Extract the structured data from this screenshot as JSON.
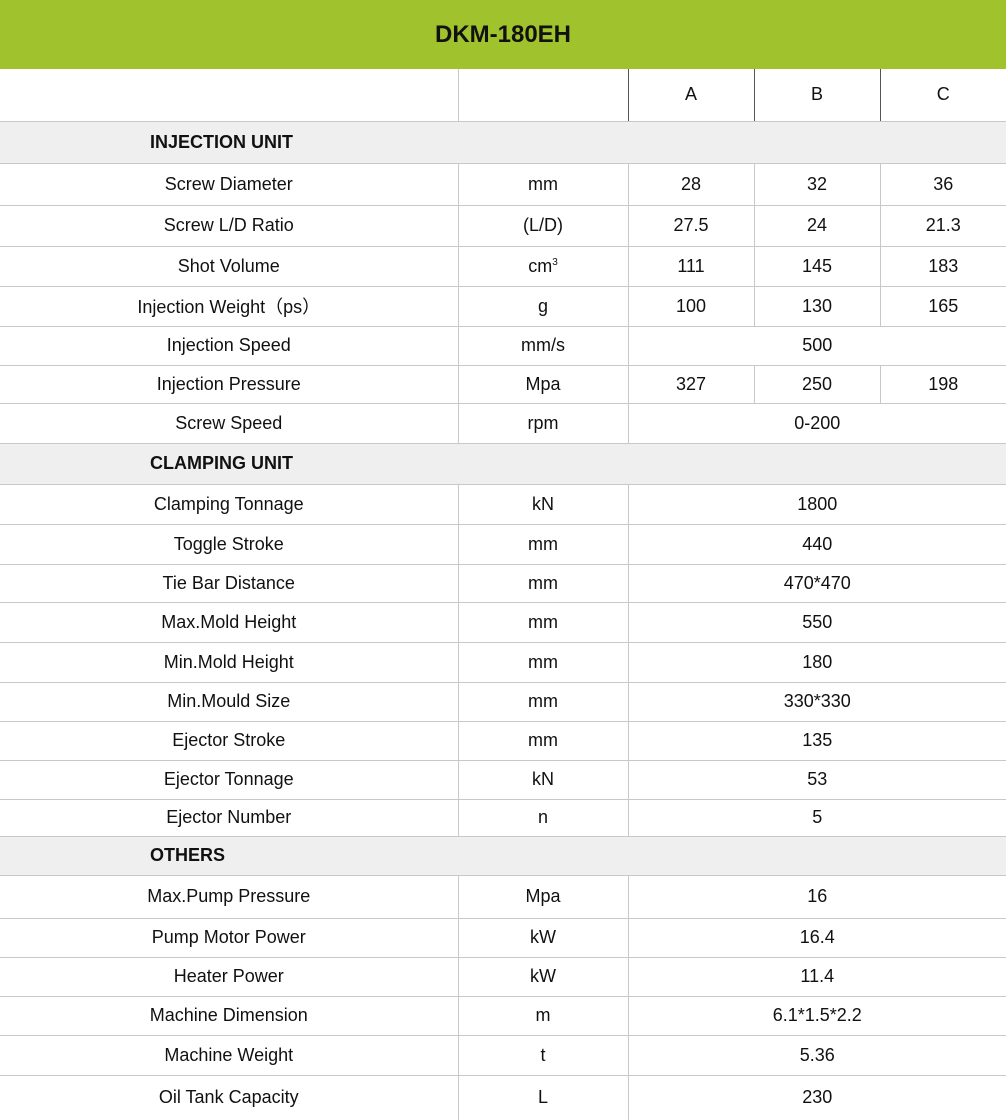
{
  "title": "DKM-180EH",
  "columns": [
    "",
    "",
    "A",
    "B",
    "C"
  ],
  "accent_color": "#a0c22c",
  "sections": [
    {
      "name": "INJECTION UNIT",
      "rows": [
        {
          "label": "Screw Diameter",
          "unit": "mm",
          "values": [
            "28",
            "32",
            "36"
          ]
        },
        {
          "label": "Screw L/D Ratio",
          "unit": "(L/D)",
          "values": [
            "27.5",
            "24",
            "21.3"
          ]
        },
        {
          "label": "Shot Volume",
          "unit": "cm",
          "unit_sup": "3",
          "values": [
            "111",
            "145",
            "183"
          ]
        },
        {
          "label": "Injection Weight（ps）",
          "unit": "g",
          "values": [
            "100",
            "130",
            "165"
          ]
        },
        {
          "label": "Injection Speed",
          "unit": "mm/s",
          "values": [
            "500"
          ]
        },
        {
          "label": "Injection Pressure",
          "unit": "Mpa",
          "values": [
            "327",
            "250",
            "198"
          ]
        },
        {
          "label": "Screw Speed",
          "unit": "rpm",
          "values": [
            "0-200"
          ]
        }
      ]
    },
    {
      "name": "CLAMPING UNIT",
      "rows": [
        {
          "label": "Clamping Tonnage",
          "unit": "kN",
          "values": [
            "1800"
          ]
        },
        {
          "label": "Toggle Stroke",
          "unit": "mm",
          "values": [
            "440"
          ]
        },
        {
          "label": "Tie Bar Distance",
          "unit": "mm",
          "values": [
            "470*470"
          ]
        },
        {
          "label": "Max.Mold Height",
          "unit": "mm",
          "values": [
            "550"
          ]
        },
        {
          "label": "Min.Mold Height",
          "unit": "mm",
          "values": [
            "180"
          ]
        },
        {
          "label": "Min.Mould Size",
          "unit": "mm",
          "values": [
            "330*330"
          ]
        },
        {
          "label": "Ejector Stroke",
          "unit": "mm",
          "values": [
            "135"
          ]
        },
        {
          "label": "Ejector Tonnage",
          "unit": "kN",
          "values": [
            "53"
          ]
        },
        {
          "label": "Ejector Number",
          "unit": "n",
          "values": [
            "5"
          ]
        }
      ]
    },
    {
      "name": "OTHERS",
      "rows": [
        {
          "label": "Max.Pump Pressure",
          "unit": "Mpa",
          "values": [
            "16"
          ]
        },
        {
          "label": "Pump Motor Power",
          "unit": "kW",
          "values": [
            "16.4"
          ]
        },
        {
          "label": "Heater Power",
          "unit": "kW",
          "values": [
            "11.4"
          ]
        },
        {
          "label": "Machine Dimension",
          "unit": "m",
          "values": [
            "6.1*1.5*2.2"
          ]
        },
        {
          "label": "Machine Weight",
          "unit": "t",
          "values": [
            "5.36"
          ]
        },
        {
          "label": "Oil Tank Capacity",
          "unit": "L",
          "values": [
            "230"
          ]
        }
      ]
    }
  ]
}
